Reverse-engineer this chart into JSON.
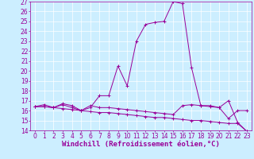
{
  "xlabel": "Windchill (Refroidissement éolien,°C)",
  "xlim": [
    -0.5,
    23.5
  ],
  "ylim": [
    14,
    27
  ],
  "xticks": [
    0,
    1,
    2,
    3,
    4,
    5,
    6,
    7,
    8,
    9,
    10,
    11,
    12,
    13,
    14,
    15,
    16,
    17,
    18,
    19,
    20,
    21,
    22,
    23
  ],
  "yticks": [
    14,
    15,
    16,
    17,
    18,
    19,
    20,
    21,
    22,
    23,
    24,
    25,
    26,
    27
  ],
  "bg_color": "#cceeff",
  "line_color": "#990099",
  "line1_x": [
    0,
    1,
    2,
    3,
    4,
    5,
    6,
    7,
    8,
    9,
    10,
    11,
    12,
    13,
    14,
    15,
    16,
    17,
    18,
    19,
    20,
    21,
    22,
    23
  ],
  "line1_y": [
    16.4,
    16.6,
    16.3,
    16.6,
    16.3,
    16.0,
    16.3,
    17.5,
    17.5,
    20.5,
    18.5,
    23.0,
    24.7,
    24.9,
    25.0,
    27.0,
    26.8,
    20.3,
    16.5,
    16.5,
    16.3,
    15.2,
    16.0,
    16.0
  ],
  "line2_x": [
    0,
    1,
    2,
    3,
    4,
    5,
    6,
    7,
    8,
    9,
    10,
    11,
    12,
    13,
    14,
    15,
    16,
    17,
    18,
    19,
    20,
    21,
    22,
    23
  ],
  "line2_y": [
    16.4,
    16.4,
    16.3,
    16.2,
    16.1,
    16.0,
    15.9,
    15.8,
    15.8,
    15.7,
    15.6,
    15.5,
    15.4,
    15.3,
    15.3,
    15.2,
    15.1,
    15.0,
    15.0,
    14.9,
    14.8,
    14.7,
    14.7,
    13.9
  ],
  "line3_x": [
    0,
    1,
    2,
    3,
    4,
    5,
    6,
    7,
    8,
    9,
    10,
    11,
    12,
    13,
    14,
    15,
    16,
    17,
    18,
    19,
    20,
    21,
    22,
    23
  ],
  "line3_y": [
    16.4,
    16.4,
    16.3,
    16.7,
    16.5,
    16.0,
    16.5,
    16.3,
    16.3,
    16.2,
    16.1,
    16.0,
    15.9,
    15.8,
    15.7,
    15.6,
    16.5,
    16.6,
    16.5,
    16.4,
    16.3,
    17.0,
    14.8,
    13.9
  ],
  "tick_fontsize": 5.5,
  "xlabel_fontsize": 6.5
}
